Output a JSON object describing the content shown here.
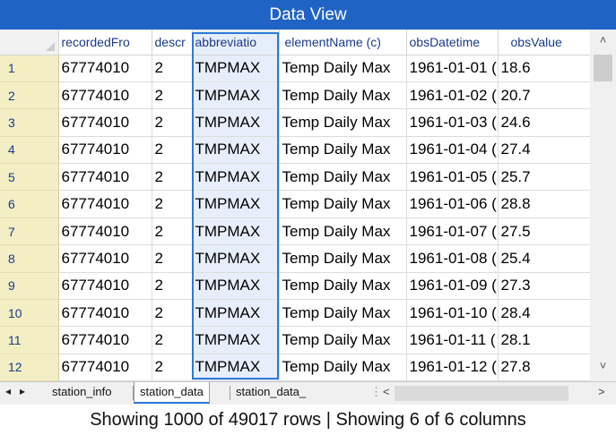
{
  "title": "Data View",
  "columns": [
    "recordedFro",
    "descr",
    "abbreviatio",
    "elementName (c)",
    "obsDatetime",
    "obsValue"
  ],
  "rows": [
    [
      "1",
      "67774010",
      "2",
      "TMPMAX",
      "Temp  Daily Max",
      "1961-01-01 (",
      "18.6"
    ],
    [
      "2",
      "67774010",
      "2",
      "TMPMAX",
      "Temp  Daily Max",
      "1961-01-02 (",
      "20.7"
    ],
    [
      "3",
      "67774010",
      "2",
      "TMPMAX",
      "Temp  Daily Max",
      "1961-01-03 (",
      "24.6"
    ],
    [
      "4",
      "67774010",
      "2",
      "TMPMAX",
      "Temp  Daily Max",
      "1961-01-04 (",
      "27.4"
    ],
    [
      "5",
      "67774010",
      "2",
      "TMPMAX",
      "Temp  Daily Max",
      "1961-01-05 (",
      "25.7"
    ],
    [
      "6",
      "67774010",
      "2",
      "TMPMAX",
      "Temp  Daily Max",
      "1961-01-06 (",
      "28.8"
    ],
    [
      "7",
      "67774010",
      "2",
      "TMPMAX",
      "Temp  Daily Max",
      "1961-01-07 (",
      "27.5"
    ],
    [
      "8",
      "67774010",
      "2",
      "TMPMAX",
      "Temp  Daily Max",
      "1961-01-08 (",
      "25.4"
    ],
    [
      "9",
      "67774010",
      "2",
      "TMPMAX",
      "Temp  Daily Max",
      "1961-01-09 (",
      "27.3"
    ],
    [
      "10",
      "67774010",
      "2",
      "TMPMAX",
      "Temp  Daily Max",
      "1961-01-10 (",
      "28.4"
    ],
    [
      "11",
      "67774010",
      "2",
      "TMPMAX",
      "Temp  Daily Max",
      "1961-01-11 (",
      "28.1"
    ],
    [
      "12",
      "67774010",
      "2",
      "TMPMAX",
      "Temp  Daily Max",
      "1961-01-12 (",
      "27.8"
    ]
  ],
  "tabs": [
    "station_info",
    "station_data",
    "station_data_"
  ],
  "active_tab": "station_data",
  "scroll": {
    "up": "˄",
    "down": "˅",
    "left": "<",
    "right": ">",
    "tab_prev": "◂",
    "tab_next": "▸",
    "dots": "⋮"
  },
  "status": "Showing 1000 of 49017 rows | Showing 6 of 6 columns"
}
